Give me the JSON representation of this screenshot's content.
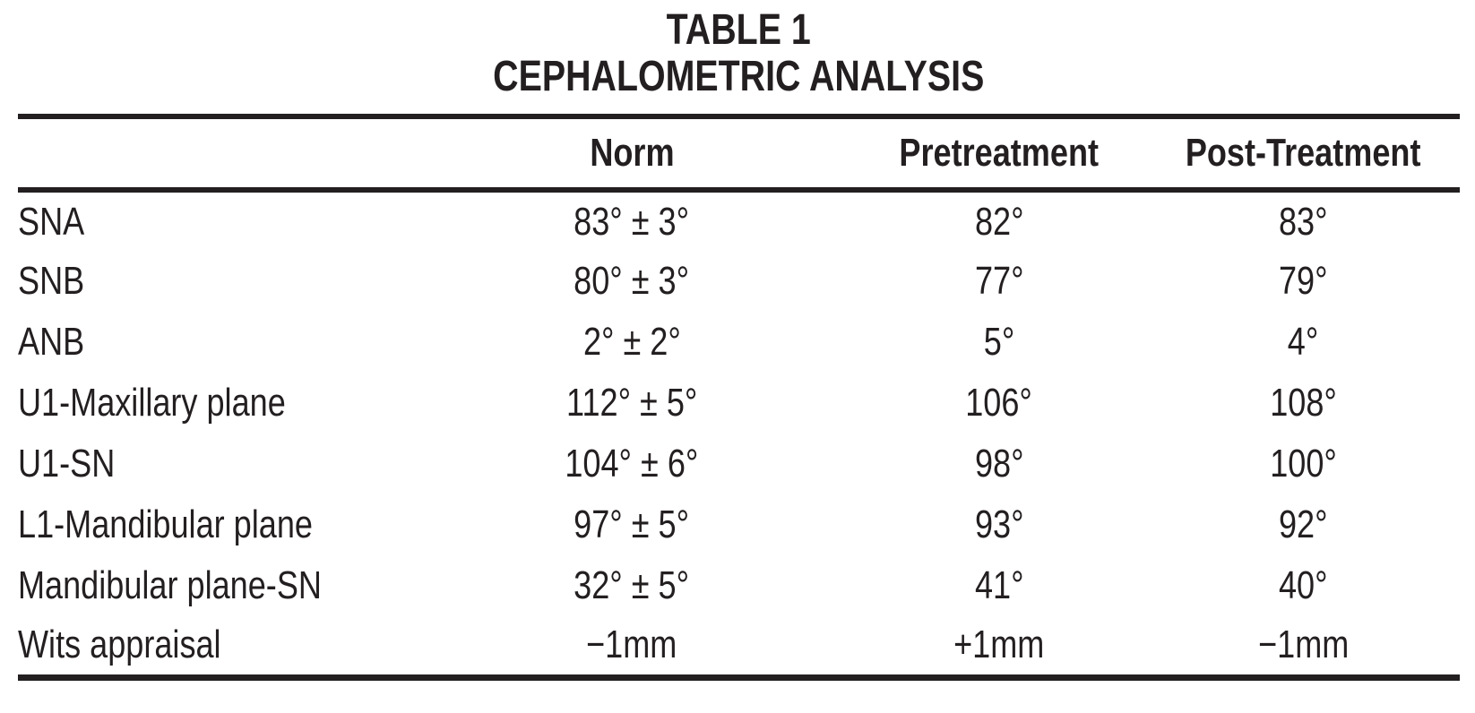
{
  "document": {
    "title_line1": "TABLE 1",
    "title_line2": "CEPHALOMETRIC ANALYSIS"
  },
  "table": {
    "columns": [
      "Norm",
      "Pretreatment",
      "Post-Treatment"
    ],
    "rows": [
      {
        "label": "SNA",
        "norm": "83° ± 3°",
        "pretreatment": "82°",
        "post_treatment": "83°"
      },
      {
        "label": "SNB",
        "norm": "80° ± 3°",
        "pretreatment": "77°",
        "post_treatment": "79°"
      },
      {
        "label": "ANB",
        "norm": "2° ± 2°",
        "pretreatment": "5°",
        "post_treatment": "4°"
      },
      {
        "label": "U1-Maxillary plane",
        "norm": "112° ± 5°",
        "pretreatment": "106°",
        "post_treatment": "108°"
      },
      {
        "label": "U1-SN",
        "norm": "104° ± 6°",
        "pretreatment": "98°",
        "post_treatment": "100°"
      },
      {
        "label": "L1-Mandibular plane",
        "norm": "97° ± 5°",
        "pretreatment": "93°",
        "post_treatment": "92°"
      },
      {
        "label": "Mandibular plane-SN",
        "norm": "32° ± 5°",
        "pretreatment": "41°",
        "post_treatment": "40°"
      },
      {
        "label": "Wits appraisal",
        "norm": "−1mm",
        "pretreatment": "+1mm",
        "post_treatment": "−1mm"
      }
    ]
  },
  "colors": {
    "text": "#231f20",
    "background": "#ffffff"
  }
}
